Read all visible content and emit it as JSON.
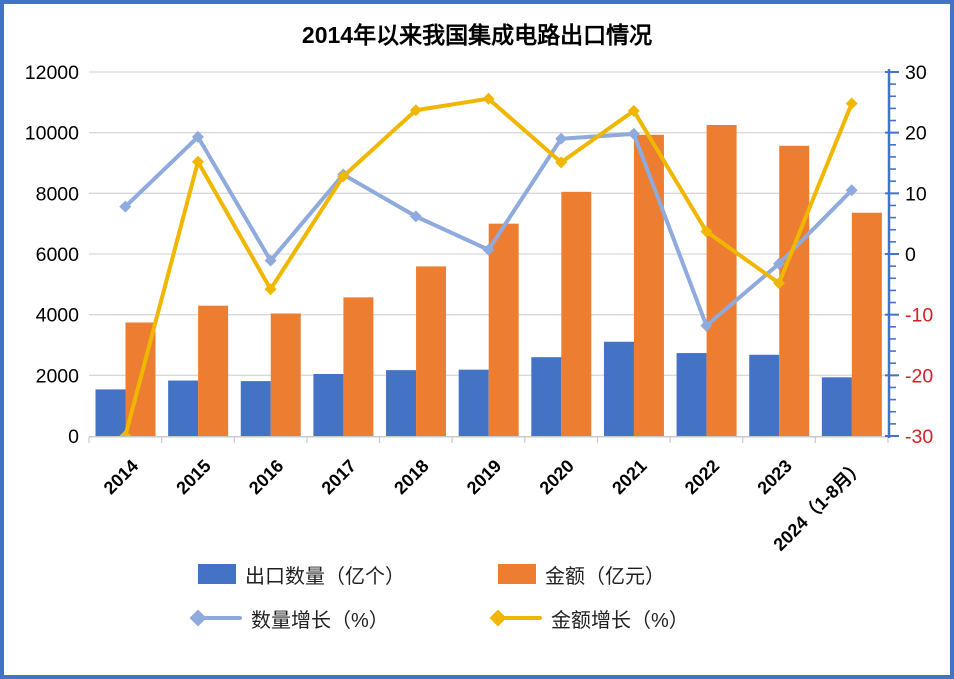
{
  "page": {
    "border_color": "#4472C4",
    "background": "#FFFFFF"
  },
  "chart_data": {
    "type": "combo-bar-line",
    "title": "2014年以来我国集成电路出口情况",
    "categories": [
      "2014",
      "2015",
      "2016",
      "2017",
      "2018",
      "2019",
      "2020",
      "2021",
      "2022",
      "2023",
      "2024（1-8月）"
    ],
    "bar_series": [
      {
        "name": "出口数量（亿个）",
        "color": "#4472C4",
        "axis": "left",
        "values": [
          1536,
          1828,
          1810,
          2044,
          2171,
          2187,
          2598,
          3107,
          2734,
          2678,
          1935
        ]
      },
      {
        "name": "金额（亿元）",
        "color": "#ED7D31",
        "axis": "left",
        "values": [
          3742,
          4296,
          4039,
          4570,
          5591,
          7000,
          8050,
          9930,
          10254,
          9568,
          7360
        ]
      }
    ],
    "line_series": [
      {
        "name": "数量增长（%）",
        "color": "#8FAADC",
        "marker": "diamond",
        "axis": "right",
        "values": [
          7.8,
          19.3,
          -1.1,
          13.1,
          6.2,
          0.7,
          19.0,
          19.8,
          -11.8,
          -1.6,
          10.5
        ]
      },
      {
        "name": "金额增长（%）",
        "color": "#EFB700",
        "marker": "diamond",
        "axis": "right",
        "values": [
          -30,
          15.2,
          -5.8,
          12.8,
          23.7,
          25.6,
          15.1,
          23.6,
          3.7,
          -4.8,
          24.8
        ]
      }
    ],
    "left_axis": {
      "min": 0,
      "max": 12000,
      "step": 2000,
      "ticks": [
        "0",
        "2000",
        "4000",
        "6000",
        "8000",
        "10000",
        "12000"
      ]
    },
    "right_axis": {
      "min": -30,
      "max": 30,
      "step": 10,
      "minor_step": 2,
      "ticks": [
        "30",
        "20",
        "10",
        "0",
        "-10",
        "-20",
        "-30"
      ],
      "axis_color": "#4472C4",
      "negative_color": "#D32026"
    },
    "grid": true,
    "gridline_color": "#D9D9D9",
    "legend_position": "bottom"
  }
}
